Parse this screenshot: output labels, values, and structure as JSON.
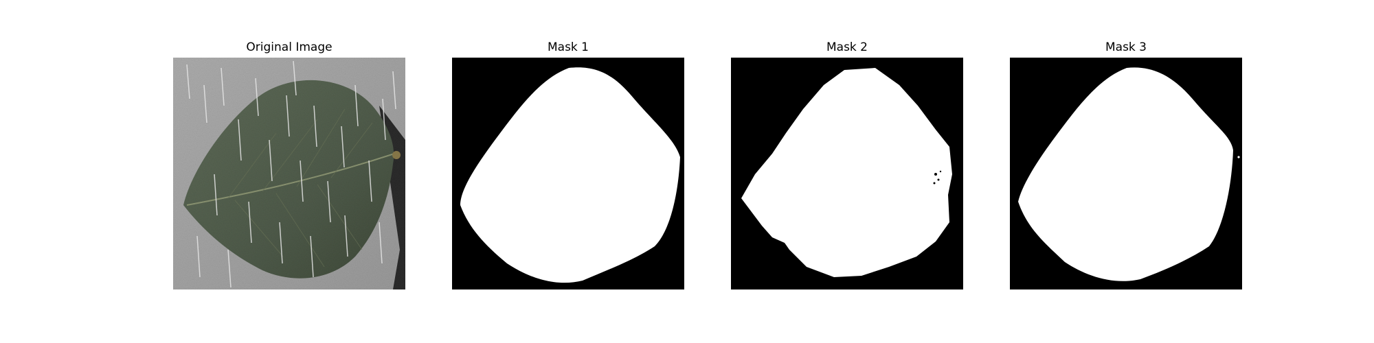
{
  "figure": {
    "background": "#ffffff",
    "panels": [
      {
        "title": "Original Image",
        "kind": "photo",
        "leaf_color": "#556150",
        "background_color": "#a3a3a3"
      },
      {
        "title": "Mask 1",
        "kind": "mask",
        "foreground": "#ffffff",
        "background": "#000000"
      },
      {
        "title": "Mask 2",
        "kind": "mask",
        "foreground": "#ffffff",
        "background": "#000000"
      },
      {
        "title": "Mask 3",
        "kind": "mask",
        "foreground": "#ffffff",
        "background": "#000000"
      }
    ]
  }
}
